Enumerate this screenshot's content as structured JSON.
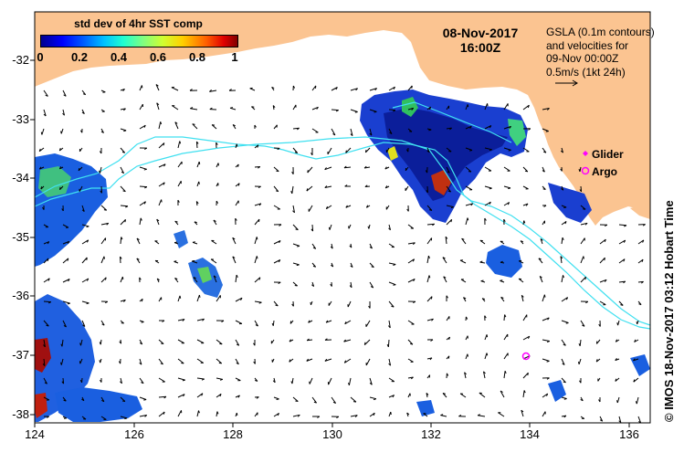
{
  "colorbar": {
    "title": "std dev of 4hr SST comp",
    "ticks": [
      "0",
      "0.2",
      "0.4",
      "0.6",
      "0.8",
      "1"
    ]
  },
  "header": {
    "date": "08-Nov-2017",
    "time": "16:00Z"
  },
  "gsla_note": {
    "line1": "GSLA (0.1m contours)",
    "line2": "and velocities for",
    "line3": "09-Nov 00:00Z",
    "line4": "0.5m/s (1kt 24h)"
  },
  "legend": {
    "glider": "Glider",
    "argo": "Argo"
  },
  "axes": {
    "lat_ticks": [
      "-32",
      "-33",
      "-34",
      "-35",
      "-36",
      "-37",
      "-38"
    ],
    "lon_ticks": [
      "124",
      "126",
      "128",
      "130",
      "132",
      "134",
      "136"
    ]
  },
  "credit": "© IMOS 18-Nov-2017 03:12 Hobart Time",
  "colors": {
    "land": "#fbc491",
    "ocean": "#ffffff",
    "contour": "#40e0f0",
    "argo": "#ff00ff"
  }
}
